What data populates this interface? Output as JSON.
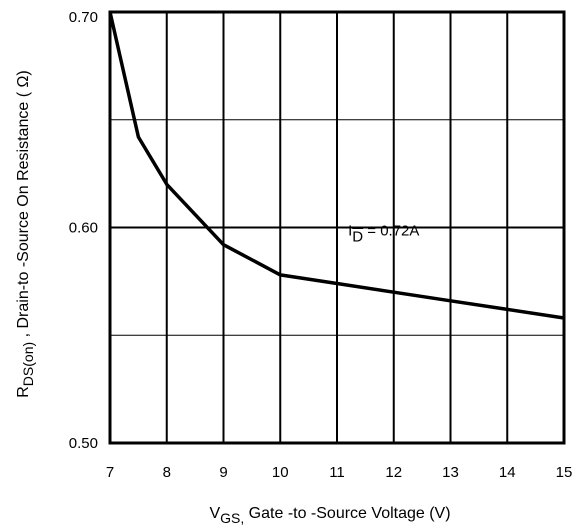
{
  "chart_data": {
    "type": "line",
    "xlabel": {
      "main": "V",
      "sub": "GS,",
      "rest": " Gate -to -Source Voltage  (V)"
    },
    "ylabel": {
      "main": "R",
      "sub": "DS(on)",
      "rest": " ,  Drain-to -Source On Resistance ( Ω)"
    },
    "xlim": [
      7,
      15
    ],
    "ylim": [
      0.5,
      0.7
    ],
    "x_ticks": [
      7,
      8,
      9,
      10,
      11,
      12,
      13,
      14,
      15
    ],
    "x_tick_labels": [
      "7",
      "8",
      "9",
      "10",
      "11",
      "12",
      "13",
      "14",
      "15"
    ],
    "y_ticks": [
      0.5,
      0.6,
      0.7
    ],
    "y_tick_labels": [
      "0.50",
      "0.60",
      "0.70"
    ],
    "y_minor_gridlines": [
      0.55,
      0.65
    ],
    "grid": true,
    "series": [
      {
        "x": [
          7.0,
          7.5,
          8.0,
          9.0,
          10.0,
          11.0,
          12.0,
          13.0,
          14.0,
          15.0
        ],
        "values": [
          0.7,
          0.642,
          0.62,
          0.592,
          0.578,
          0.574,
          0.57,
          0.566,
          0.562,
          0.558
        ]
      }
    ],
    "annotation": {
      "main": "I",
      "sub": "D",
      "rest": " = 0.72A",
      "x": 12.0,
      "y": 0.6
    }
  }
}
